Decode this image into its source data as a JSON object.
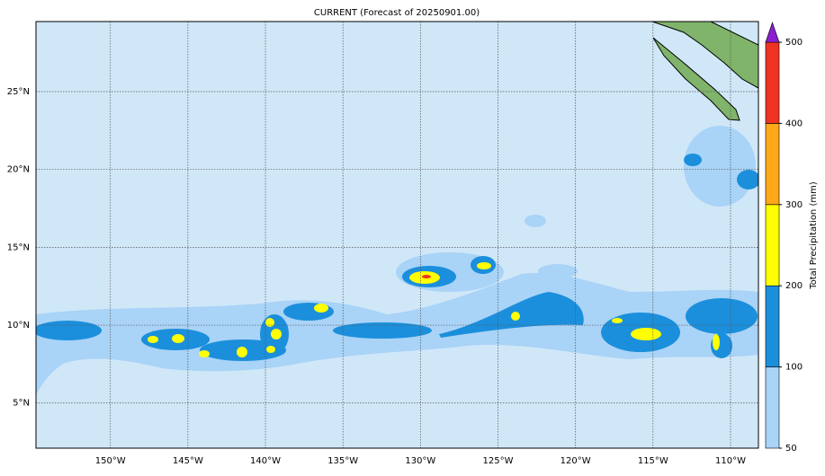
{
  "title": "CURRENT (Forecast of 20250901.00)",
  "map": {
    "xlim": [
      -154.8,
      -108.2
    ],
    "ylim": [
      2.1,
      29.5
    ],
    "xticks": [
      {
        "value": -150,
        "label": "150°W"
      },
      {
        "value": -145,
        "label": "145°W"
      },
      {
        "value": -140,
        "label": "140°W"
      },
      {
        "value": -135,
        "label": "135°W"
      },
      {
        "value": -130,
        "label": "130°W"
      },
      {
        "value": -125,
        "label": "125°W"
      },
      {
        "value": -120,
        "label": "120°W"
      },
      {
        "value": -115,
        "label": "115°W"
      },
      {
        "value": -110,
        "label": "110°W"
      }
    ],
    "yticks": [
      {
        "value": 5,
        "label": "5°N"
      },
      {
        "value": 10,
        "label": "10°N"
      },
      {
        "value": 15,
        "label": "15°N"
      },
      {
        "value": 20,
        "label": "20°N"
      },
      {
        "value": 25,
        "label": "25°N"
      }
    ]
  },
  "colorbar": {
    "label": "Total Precipitation (mm)",
    "levels": [
      50,
      100,
      200,
      300,
      400,
      500
    ],
    "colors": [
      "#a9d3f7",
      "#1b8fdc",
      "#ffff00",
      "#ffa81a",
      "#ee3322"
    ],
    "extend_color": "#8a1fd0"
  }
}
